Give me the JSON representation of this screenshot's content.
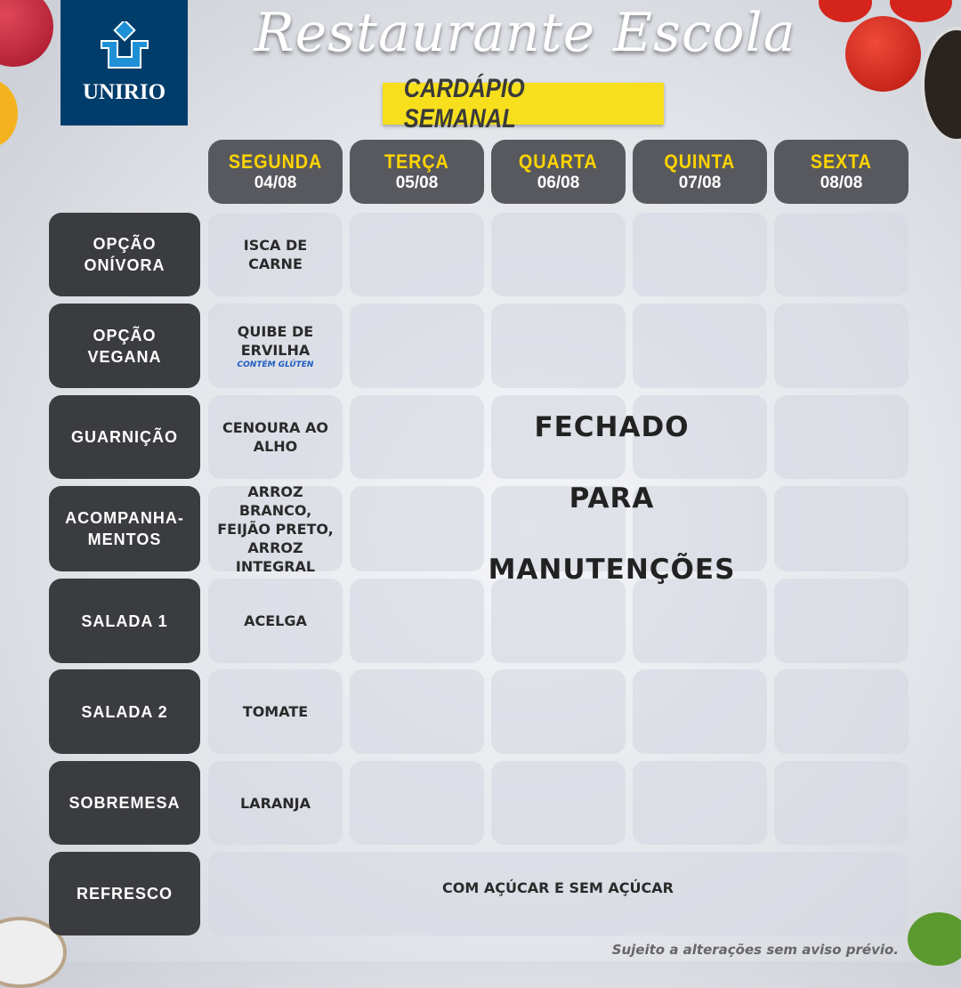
{
  "logo": {
    "text": "UNIRIO"
  },
  "header": {
    "title": "Restaurante Escola",
    "subtitle": "CARDÁPIO SEMANAL"
  },
  "days": [
    {
      "name": "SEGUNDA",
      "date": "04/08"
    },
    {
      "name": "TERÇA",
      "date": "05/08"
    },
    {
      "name": "QUARTA",
      "date": "06/08"
    },
    {
      "name": "QUINTA",
      "date": "07/08"
    },
    {
      "name": "SEXTA",
      "date": "08/08"
    }
  ],
  "rows": [
    {
      "label": "OPÇÃO ONÍVORA",
      "monday": "ISCA DE CARNE"
    },
    {
      "label": "OPÇÃO VEGANA",
      "monday": "QUIBE DE ERVILHA",
      "note": "CONTÉM GLÚTEN"
    },
    {
      "label": "GUARNIÇÃO",
      "monday": "CENOURA AO ALHO"
    },
    {
      "label": "ACOMPANHA-MENTOS",
      "monday": "ARROZ BRANCO, FEIJÃO PRETO, ARROZ INTEGRAL"
    },
    {
      "label": "SALADA 1",
      "monday": "ACELGA"
    },
    {
      "label": "SALADA 2",
      "monday": "TOMATE"
    },
    {
      "label": "SOBREMESA",
      "monday": "LARANJA"
    },
    {
      "label": "REFRESCO",
      "monday": "COM AÇÚCAR E SEM AÇÚCAR"
    }
  ],
  "closed": [
    "FECHADO",
    "PARA",
    "MANUTENÇÕES"
  ],
  "footer": "Sujeito a alterações sem aviso prévio.",
  "colors": {
    "logo_bg": "#003d6b",
    "banner": "#f7df1e",
    "day_name": "#ffd400",
    "label_bg": "#3b3c40",
    "note": "#1d5dbf"
  }
}
